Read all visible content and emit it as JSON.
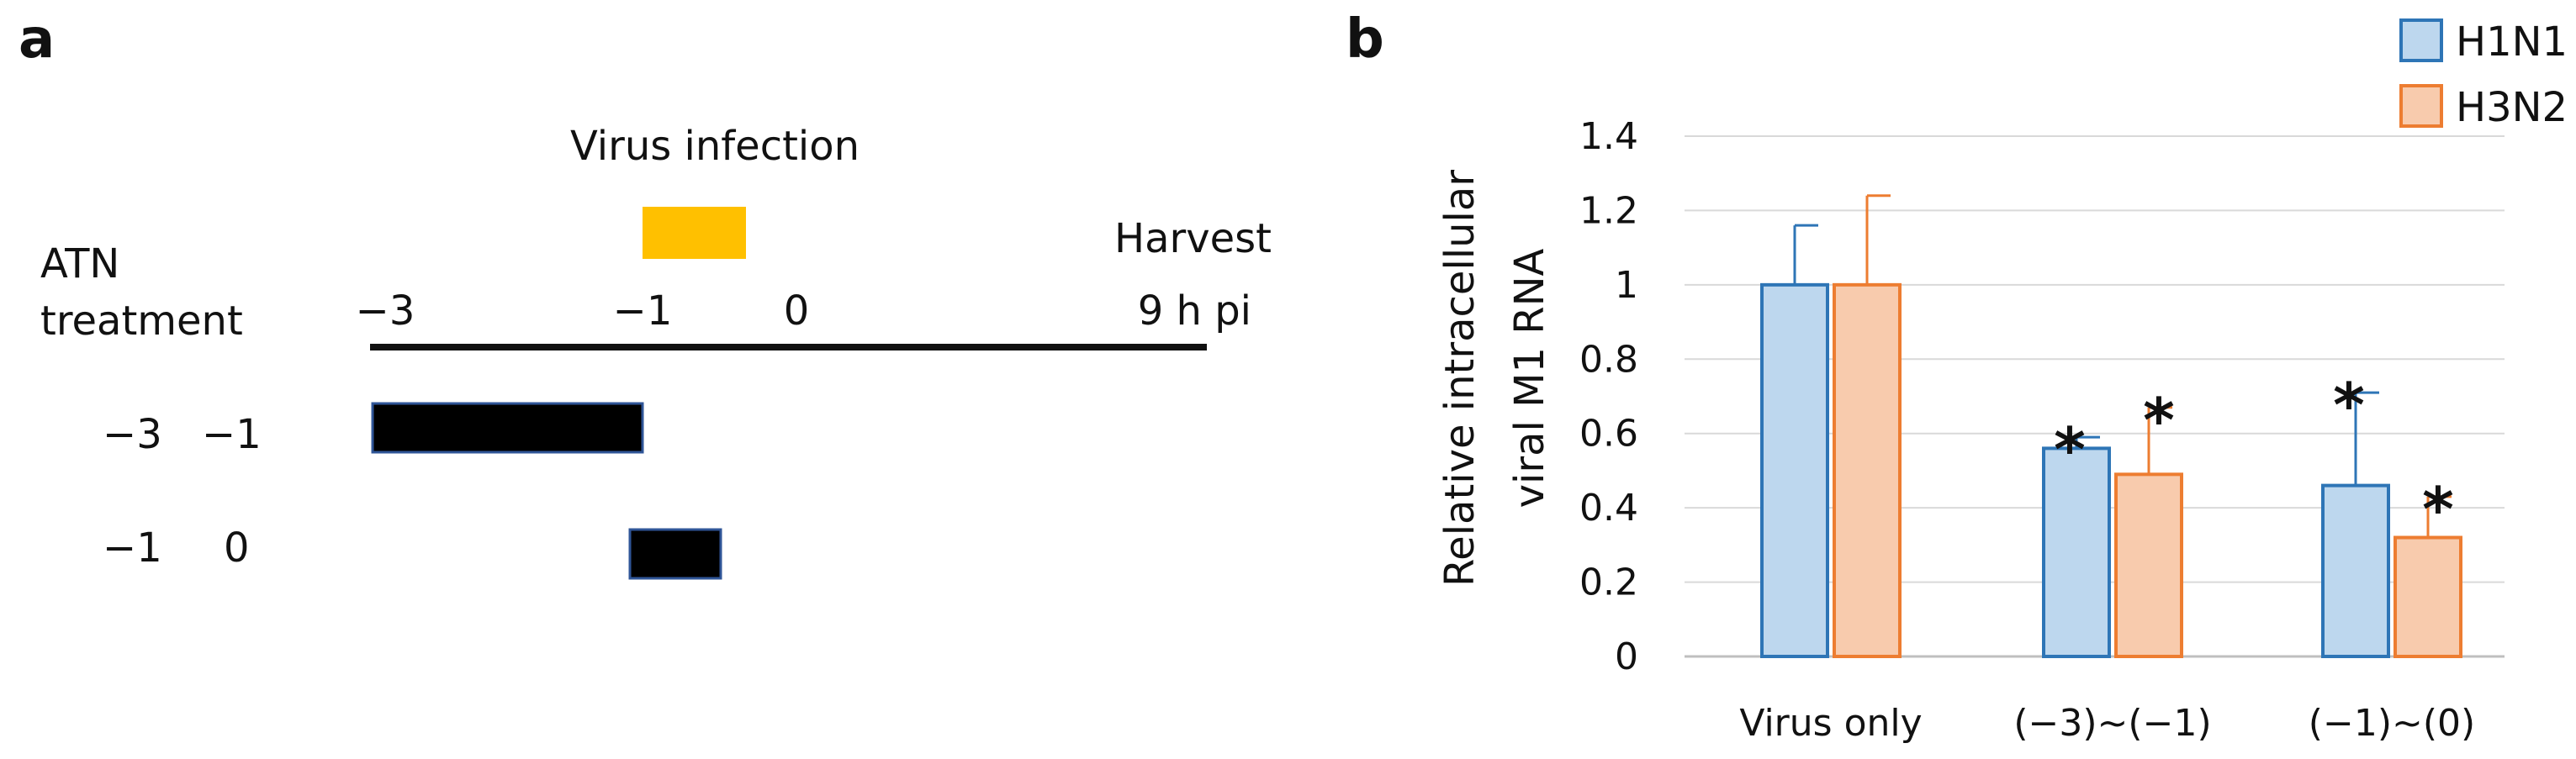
{
  "panel_a": {
    "letter": "a",
    "virus_label": "Virus infection",
    "atn_label_line1": "ATN",
    "atn_label_line2": "treatment",
    "harvest_label": "Harvest",
    "harvest_time": "9 h pi",
    "timeline_ticks": [
      "−3",
      "−1",
      "0"
    ],
    "rows": [
      {
        "start_label": "−3",
        "end_label": "−1",
        "start": -3,
        "end": -1
      },
      {
        "start_label": "−1",
        "end_label": "0",
        "start": -1,
        "end": 0
      }
    ],
    "virus_interval": {
      "start": -1,
      "end": 0
    },
    "colors": {
      "virus_bar": "#FFC000",
      "treatment_bar": "#000000",
      "treatment_bar_border": "#2F5597"
    }
  },
  "panel_b": {
    "letter": "b",
    "ylabel_line1": "Relative  intracellular",
    "ylabel_line2": "viral M1 RNA",
    "y_ticks": [
      "0",
      "0.2",
      "0.4",
      "0.6",
      "0.8",
      "1",
      "1.2",
      "1.4"
    ],
    "significance_marker": "*"
  },
  "chart_data": {
    "type": "bar",
    "categories": [
      "Virus only",
      "(−3)~(−1)",
      "(−1)~(0)"
    ],
    "series": [
      {
        "name": "H1N1",
        "values": [
          1.0,
          0.56,
          0.46
        ],
        "errors": [
          0.16,
          0.03,
          0.25
        ],
        "significant": [
          false,
          true,
          true
        ],
        "fill": "#BDD7EE",
        "stroke": "#2E75B6"
      },
      {
        "name": "H3N2",
        "values": [
          1.0,
          0.49,
          0.32
        ],
        "errors": [
          0.24,
          0.18,
          0.11
        ],
        "significant": [
          false,
          true,
          true
        ],
        "fill": "#F8CBAD",
        "stroke": "#ED7D31"
      }
    ],
    "ylim": [
      0,
      1.4
    ],
    "ytick_step": 0.2,
    "grid": true,
    "legend": "top-right"
  }
}
